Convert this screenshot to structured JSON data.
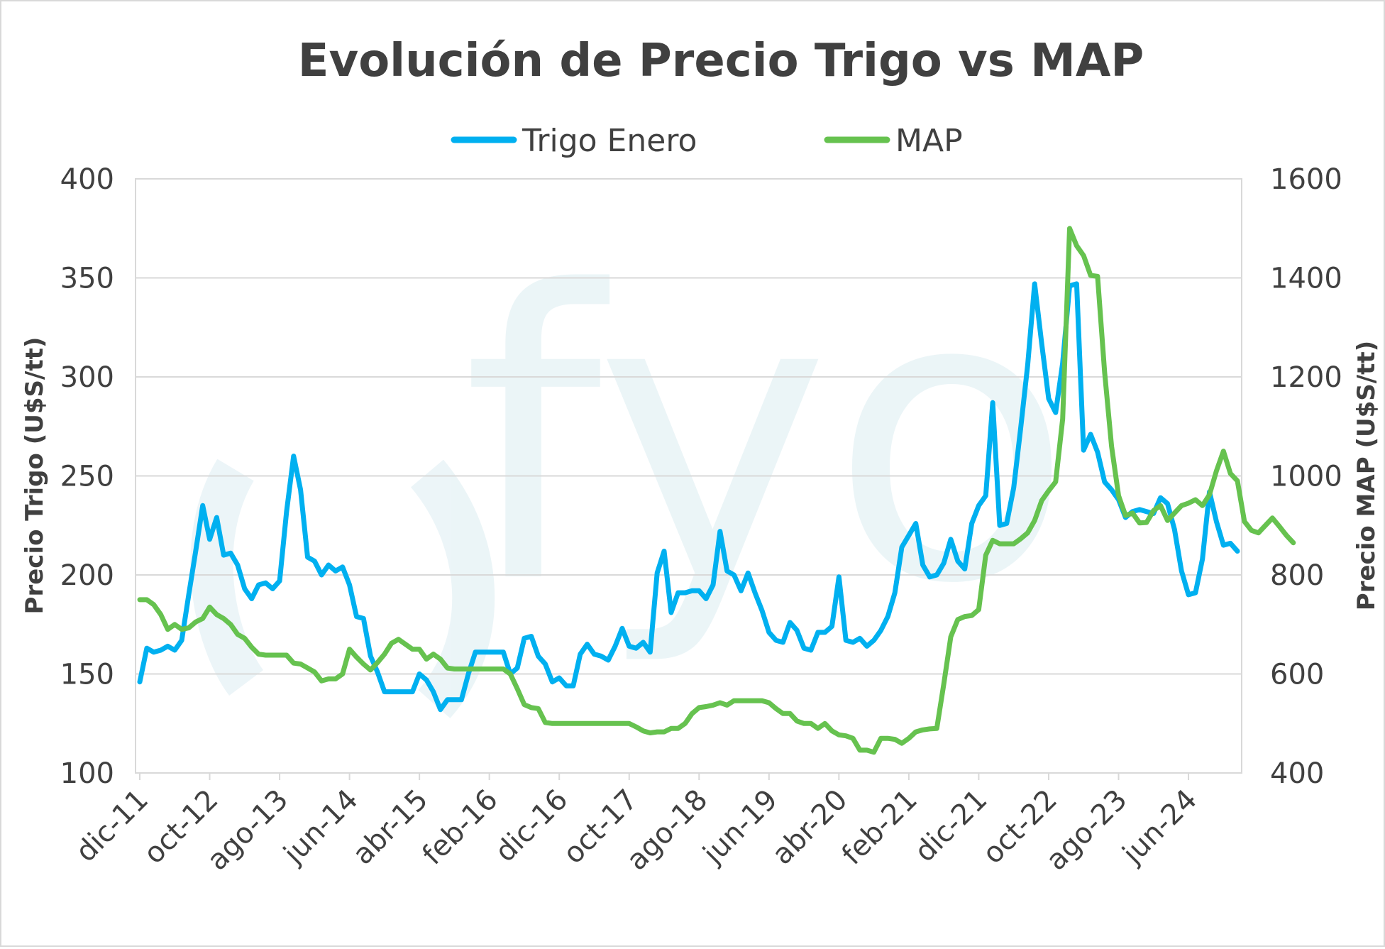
{
  "chart_data": {
    "type": "line",
    "title": "Evolución de Precio Trigo vs MAP",
    "legend_position": "top",
    "grid": true,
    "watermark": "fyo",
    "x_tick_labels": [
      "dic-11",
      "oct-12",
      "ago-13",
      "jun-14",
      "abr-15",
      "feb-16",
      "dic-16",
      "oct-17",
      "ago-18",
      "jun-19",
      "abr-20",
      "feb-21",
      "dic-21",
      "oct-22",
      "ago-23",
      "jun-24"
    ],
    "y_left": {
      "label": "Precio Trigo (U$S/tt)",
      "ylim": [
        100,
        400
      ],
      "ticks": [
        "100",
        "150",
        "200",
        "250",
        "300",
        "350",
        "400"
      ]
    },
    "y_right": {
      "label": "Precio MAP (U$S/tt)",
      "ylim": [
        400,
        1600
      ],
      "ticks": [
        "400",
        "600",
        "800",
        "1000",
        "1200",
        "1400",
        "1600"
      ]
    },
    "series": [
      {
        "name": "Trigo Enero",
        "axis": "left",
        "color": "#00b0f0",
        "values": [
          146,
          163,
          161,
          162,
          164,
          162,
          167,
          190,
          212,
          235,
          218,
          229,
          210,
          211,
          205,
          193,
          188,
          195,
          196,
          193,
          197,
          232,
          260,
          243,
          209,
          207,
          200,
          205,
          202,
          204,
          195,
          179,
          178,
          159,
          151,
          141,
          141,
          141,
          141,
          141,
          150,
          147,
          141,
          132,
          137,
          137,
          137,
          150,
          161,
          161,
          161,
          161,
          161,
          150,
          153,
          168,
          169,
          159,
          155,
          146,
          148,
          144,
          144,
          160,
          165,
          160,
          159,
          157,
          164,
          173,
          164,
          163,
          166,
          161,
          201,
          212,
          181,
          191,
          191,
          192,
          192,
          188,
          195,
          222,
          202,
          200,
          192,
          201,
          191,
          182,
          171,
          167,
          166,
          176,
          172,
          163,
          162,
          171,
          171,
          174,
          199,
          167,
          166,
          168,
          164,
          167,
          172,
          179,
          191,
          214,
          220,
          226,
          205,
          199,
          200,
          206,
          218,
          207,
          203,
          226,
          235,
          240,
          287,
          225,
          226,
          244,
          274,
          306,
          347,
          317,
          289,
          282,
          307,
          346,
          347,
          263,
          271,
          262,
          247,
          243,
          238,
          229,
          232,
          233,
          232,
          231,
          239,
          236,
          223,
          202,
          190,
          191,
          208,
          242,
          227,
          215,
          216,
          212
        ]
      },
      {
        "name": "MAP",
        "axis": "right",
        "color": "#66c24f",
        "values": [
          750,
          750,
          740,
          720,
          690,
          700,
          690,
          693,
          705,
          712,
          735,
          720,
          712,
          700,
          680,
          672,
          654,
          640,
          638,
          638,
          638,
          638,
          622,
          620,
          612,
          604,
          586,
          590,
          590,
          600,
          650,
          634,
          620,
          608,
          623,
          640,
          662,
          670,
          660,
          650,
          650,
          630,
          640,
          630,
          612,
          610,
          610,
          610,
          610,
          610,
          610,
          610,
          610,
          600,
          570,
          538,
          532,
          530,
          502,
          500,
          500,
          500,
          500,
          500,
          500,
          500,
          500,
          500,
          500,
          500,
          500,
          493,
          485,
          481,
          483,
          483,
          490,
          490,
          500,
          520,
          532,
          534,
          537,
          542,
          537,
          546,
          546,
          546,
          546,
          546,
          542,
          530,
          520,
          520,
          505,
          500,
          500,
          490,
          500,
          485,
          477,
          475,
          470,
          446,
          446,
          442,
          470,
          470,
          468,
          460,
          470,
          483,
          487,
          489,
          490,
          580,
          675,
          710,
          716,
          718,
          730,
          840,
          870,
          863,
          863,
          863,
          873,
          885,
          910,
          950,
          970,
          988,
          1115,
          1500,
          1465,
          1445,
          1405,
          1403,
          1210,
          1060,
          960,
          920,
          925,
          905,
          906,
          930,
          940,
          910,
          925,
          940,
          945,
          952,
          940,
          962,
          1010,
          1050,
          1005,
          990,
          908,
          890,
          885,
          900,
          915,
          898,
          880,
          865
        ]
      }
    ]
  }
}
